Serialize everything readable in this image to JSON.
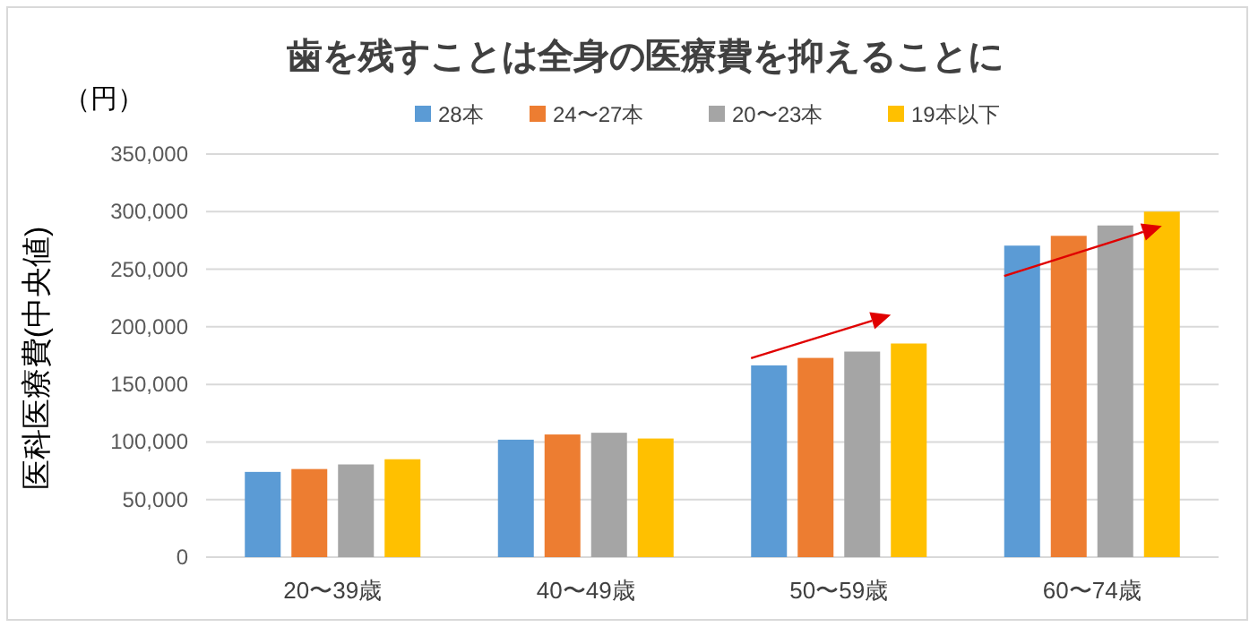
{
  "chart_data": {
    "type": "bar",
    "title": "歯を残すことは全身の医療費を抑えることに",
    "ylabel": "医科医療費(中央値)",
    "annotations": [
      "（円）"
    ],
    "categories": [
      "20〜39歳",
      "40〜49歳",
      "50〜59歳",
      "60〜74歳"
    ],
    "series": [
      {
        "name": "28本",
        "color": "#5b9bd5",
        "values": [
          74000,
          102000,
          166500,
          270500
        ]
      },
      {
        "name": "24〜27本",
        "color": "#ed7d31",
        "values": [
          76500,
          106500,
          173000,
          279000
        ]
      },
      {
        "name": "20〜23本",
        "color": "#a5a5a5",
        "values": [
          80500,
          108000,
          178500,
          288000
        ]
      },
      {
        "name": "19本以下",
        "color": "#ffc000",
        "values": [
          85000,
          103000,
          185500,
          300000
        ]
      }
    ],
    "ylim": [
      0,
      350000
    ],
    "yticks": [
      {
        "value": 0,
        "label": "0"
      },
      {
        "value": 50000,
        "label": "50,000"
      },
      {
        "value": 100000,
        "label": "100,000"
      },
      {
        "value": 150000,
        "label": "150,000"
      },
      {
        "value": 200000,
        "label": "200,000"
      },
      {
        "value": 250000,
        "label": "250,000"
      },
      {
        "value": 300000,
        "label": "300,000"
      },
      {
        "value": 350000,
        "label": "350,000"
      }
    ],
    "grid": "y",
    "legend": "top"
  }
}
